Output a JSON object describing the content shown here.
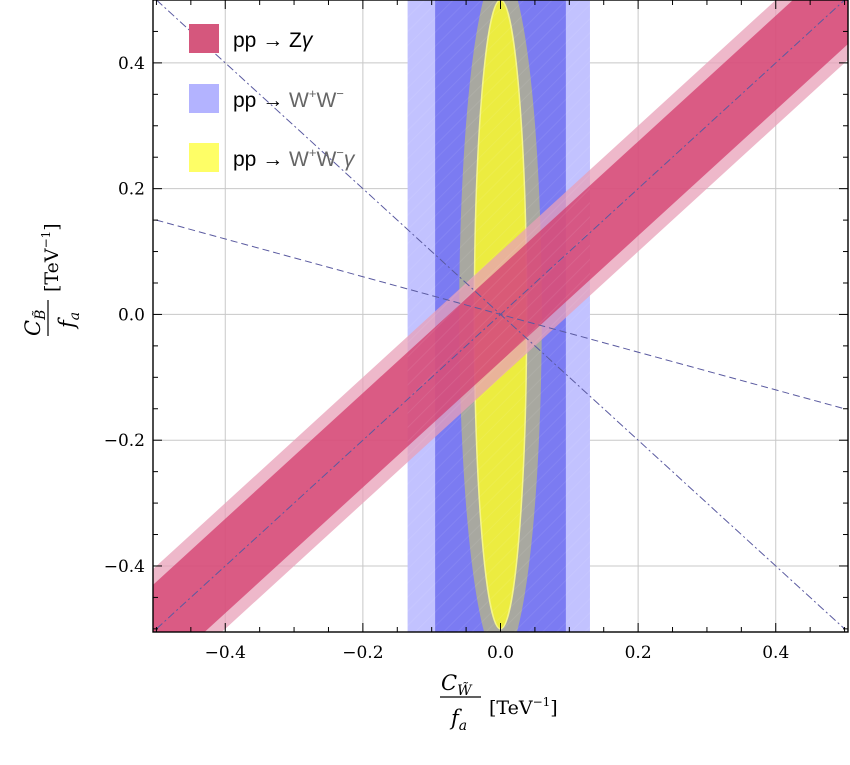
{
  "chart_data": {
    "type": "area",
    "xlim": [
      -0.505,
      0.505
    ],
    "ylim": [
      -0.505,
      0.5
    ],
    "x_ticks": [
      -0.4,
      -0.2,
      0.0,
      0.2,
      0.4
    ],
    "y_ticks": [
      -0.4,
      -0.2,
      0.0,
      0.2,
      0.4
    ],
    "x_tick_labels": [
      "−0.4",
      "−0.2",
      "0.0",
      "0.2",
      "0.4"
    ],
    "y_tick_labels": [
      "−0.4",
      "−0.2",
      "0.0",
      "0.2",
      "0.4"
    ],
    "minor_tick_step": 0.05,
    "grid": true,
    "xlabel": {
      "numerator": "C",
      "numerator_subscript": "W̃",
      "denominator": "f",
      "denominator_subscript": "a",
      "unit": "[TeV",
      "unit_exp": "−1",
      "unit_close": "]"
    },
    "ylabel": {
      "numerator": "C",
      "numerator_subscript": "B̃",
      "denominator": "f",
      "denominator_subscript": "a",
      "unit": "[TeV",
      "unit_exp": "−1",
      "unit_close": "]"
    },
    "legend_position": "top-left",
    "legend": [
      {
        "text": "pp → Z",
        "text_grey": "",
        "sup": "",
        "text2": "",
        "sup2": "",
        "tail": "γ",
        "color": "#d5577d"
      },
      {
        "text": "pp → ",
        "text_grey": "W",
        "sup": "+",
        "text2": "W",
        "sup2": "−",
        "tail": "",
        "color": "#b3b3ff"
      },
      {
        "text": "pp → ",
        "text_grey": "W",
        "sup": "+",
        "text2": "W",
        "sup2": "−",
        "tail": "γ",
        "color": "#fefe66"
      }
    ],
    "series": [
      {
        "name": "pp → Zγ",
        "shape": "diagonal band along C_B = C_W",
        "inner_halfwidth_y": 0.075,
        "outer_halfwidth_y": 0.1,
        "inner_color": "#d2386a",
        "outer_color": "#e8a0b8"
      },
      {
        "name": "pp → W⁺W⁻",
        "shape": "vertical band",
        "inner_x": [
          -0.095,
          0.095
        ],
        "outer_x": [
          -0.135,
          0.13
        ],
        "inner_color": "#7b7bf2",
        "outer_color": "#c2c2ff"
      },
      {
        "name": "pp → W⁺W⁻γ",
        "shape": "ellipse centered at origin",
        "inner_semi_axes": [
          0.038,
          0.5
        ],
        "outer_semi_axes": [
          0.06,
          0.55
        ],
        "inner_color": "#ecec40",
        "outer_color": "#a8a8a0"
      }
    ],
    "reference_lines": [
      {
        "style": "dash-dot",
        "points": [
          [
            -0.5,
            -0.5
          ],
          [
            0.5,
            0.5
          ]
        ],
        "color": "#5a5aa0"
      },
      {
        "style": "dash-dot",
        "points": [
          [
            -0.5,
            0.5
          ],
          [
            0.5,
            -0.5
          ]
        ],
        "color": "#5a5aa0"
      },
      {
        "style": "dashed",
        "points": [
          [
            -0.5,
            0.15
          ],
          [
            0.5,
            -0.15
          ]
        ],
        "color": "#5a5aa0"
      }
    ]
  }
}
